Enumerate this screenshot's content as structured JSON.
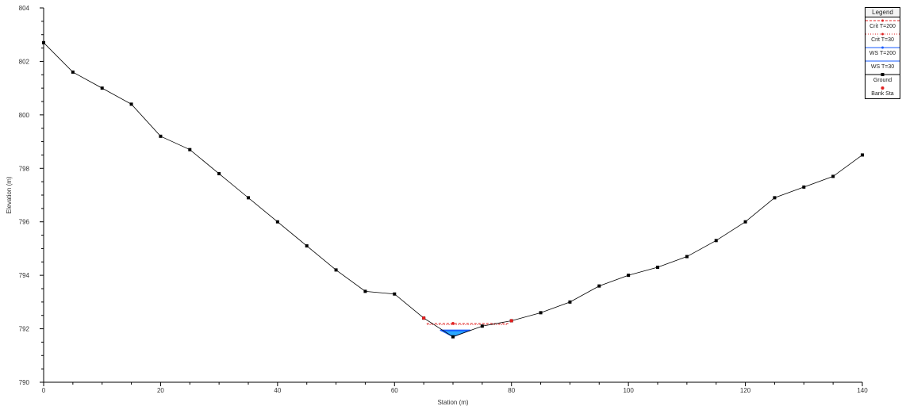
{
  "chart_data": {
    "type": "line",
    "title": "",
    "xlabel": "Station (m)",
    "ylabel": "Elevation (m)",
    "xlim": [
      0,
      140
    ],
    "ylim": [
      790,
      804
    ],
    "xticks": [
      0,
      20,
      40,
      60,
      80,
      100,
      120,
      140
    ],
    "yticks": [
      790,
      792,
      794,
      796,
      798,
      800,
      802,
      804
    ],
    "legend_title": "Legend",
    "legend_position": "top-right",
    "series": [
      {
        "name": "Ground",
        "color": "#000000",
        "marker": "square",
        "x": [
          0,
          5,
          10,
          15,
          20,
          25,
          30,
          35,
          40,
          45,
          50,
          55,
          60,
          65,
          70,
          75,
          80,
          85,
          90,
          95,
          100,
          105,
          110,
          115,
          120,
          125,
          130,
          135,
          140
        ],
        "y": [
          802.7,
          801.6,
          801.0,
          800.4,
          799.2,
          798.7,
          797.8,
          796.9,
          796.0,
          795.1,
          794.2,
          793.4,
          793.3,
          792.4,
          791.7,
          792.1,
          792.3,
          792.6,
          793.0,
          793.6,
          794.0,
          794.3,
          794.7,
          795.3,
          796.0,
          796.9,
          797.3,
          797.7,
          798.5
        ]
      },
      {
        "name": "Bank Sta",
        "color": "#e02020",
        "marker": "circle",
        "x": [
          65,
          80
        ],
        "y": [
          792.4,
          792.3
        ]
      },
      {
        "name": "Crit T=200",
        "color": "#e02020",
        "style": "dashed",
        "x": [
          65.5,
          79.5
        ],
        "y": [
          792.2,
          792.2
        ]
      },
      {
        "name": "Crit T=30",
        "color": "#e02020",
        "style": "dotted",
        "x": [
          65.6,
          79.4
        ],
        "y": [
          792.15,
          792.15
        ]
      },
      {
        "name": "WS T=200",
        "color": "#1a5cff",
        "x": [
          67.8,
          73.0
        ],
        "y": [
          791.95,
          791.95
        ]
      },
      {
        "name": "WS T=30",
        "color": "#1a5cff",
        "x": [
          67.9,
          72.9
        ],
        "y": [
          791.92,
          791.92
        ]
      }
    ]
  }
}
